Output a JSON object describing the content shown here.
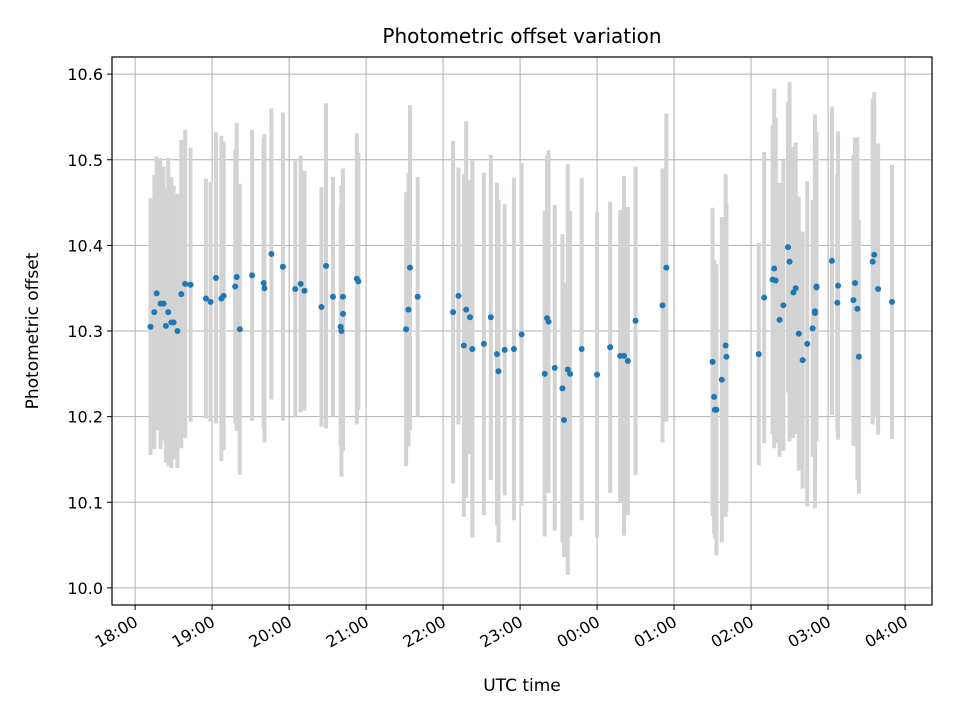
{
  "chart_data": {
    "type": "scatter",
    "title": "Photometric offset variation",
    "xlabel": "UTC time",
    "ylabel": "Photometric offset",
    "x_unit": "UTC hours (continuing past midnight)",
    "xlim": [
      17.7,
      28.35
    ],
    "ylim": [
      9.98,
      10.62
    ],
    "grid": true,
    "legend": "none",
    "x_ticks": [
      {
        "value": 18,
        "label": "18:00"
      },
      {
        "value": 19,
        "label": "19:00"
      },
      {
        "value": 20,
        "label": "20:00"
      },
      {
        "value": 21,
        "label": "21:00"
      },
      {
        "value": 22,
        "label": "22:00"
      },
      {
        "value": 23,
        "label": "23:00"
      },
      {
        "value": 24,
        "label": "00:00"
      },
      {
        "value": 25,
        "label": "01:00"
      },
      {
        "value": 26,
        "label": "02:00"
      },
      {
        "value": 27,
        "label": "03:00"
      },
      {
        "value": 28,
        "label": "04:00"
      }
    ],
    "y_ticks": [
      {
        "value": 10.0,
        "label": "10.0"
      },
      {
        "value": 10.1,
        "label": "10.1"
      },
      {
        "value": 10.2,
        "label": "10.2"
      },
      {
        "value": 10.3,
        "label": "10.3"
      },
      {
        "value": 10.4,
        "label": "10.4"
      },
      {
        "value": 10.5,
        "label": "10.5"
      },
      {
        "value": 10.6,
        "label": "10.6"
      }
    ],
    "colors": {
      "point": "#1f77b4",
      "errorbar": "#d3d3d3",
      "grid": "#b0b0b0",
      "axes": "#000000"
    },
    "series": [
      {
        "x": [
          18.2,
          18.25,
          18.28,
          18.33,
          18.37,
          18.4,
          18.43,
          18.47,
          18.5,
          18.55,
          18.6,
          18.65,
          18.72,
          18.92,
          18.98,
          19.05,
          19.12,
          19.15,
          19.3,
          19.32,
          19.36,
          19.52,
          19.67,
          19.68,
          19.77,
          19.92,
          20.08,
          20.15,
          20.2,
          20.42,
          20.48,
          20.57,
          20.67,
          20.68,
          20.7,
          20.7,
          20.88,
          20.9,
          21.52,
          21.55,
          21.57,
          21.67,
          22.13,
          22.2,
          22.27,
          22.3,
          22.35,
          22.38,
          22.53,
          22.62,
          22.7,
          22.72,
          22.8,
          22.92,
          23.02,
          23.32,
          23.35,
          23.37,
          23.45,
          23.55,
          23.57,
          23.62,
          23.65,
          23.8,
          24.0,
          24.17,
          24.3,
          24.35,
          24.4,
          24.5,
          24.85,
          24.9,
          25.5,
          25.52,
          25.53,
          25.55,
          25.62,
          25.67,
          25.68,
          26.1,
          26.17,
          26.28,
          26.3,
          26.32,
          26.37,
          26.42,
          26.48,
          26.5,
          26.55,
          26.58,
          26.62,
          26.67,
          26.73,
          26.8,
          26.83,
          26.83,
          26.85,
          26.85,
          27.05,
          27.12,
          27.13,
          27.33,
          27.35,
          27.38,
          27.4,
          27.58,
          27.6,
          27.65,
          27.83
        ],
        "y": [
          10.305,
          10.322,
          10.344,
          10.332,
          10.332,
          10.306,
          10.322,
          10.31,
          10.31,
          10.3,
          10.343,
          10.355,
          10.354,
          10.338,
          10.334,
          10.362,
          10.338,
          10.341,
          10.352,
          10.363,
          10.302,
          10.365,
          10.356,
          10.35,
          10.39,
          10.375,
          10.349,
          10.355,
          10.347,
          10.328,
          10.376,
          10.34,
          10.305,
          10.3,
          10.32,
          10.34,
          10.361,
          10.358,
          10.302,
          10.325,
          10.374,
          10.34,
          10.322,
          10.341,
          10.283,
          10.325,
          10.316,
          10.279,
          10.285,
          10.316,
          10.273,
          10.253,
          10.278,
          10.279,
          10.296,
          10.25,
          10.315,
          10.311,
          10.257,
          10.233,
          10.196,
          10.255,
          10.25,
          10.279,
          10.249,
          10.281,
          10.271,
          10.271,
          10.265,
          10.312,
          10.33,
          10.374,
          10.264,
          10.223,
          10.208,
          10.208,
          10.243,
          10.283,
          10.27,
          10.273,
          10.339,
          10.36,
          10.373,
          10.359,
          10.313,
          10.33,
          10.398,
          10.381,
          10.345,
          10.35,
          10.297,
          10.266,
          10.285,
          10.303,
          10.321,
          10.323,
          10.351,
          10.352,
          10.382,
          10.333,
          10.353,
          10.336,
          10.356,
          10.326,
          10.27,
          10.381,
          10.389,
          10.349,
          10.334
        ],
        "y_low": [
          10.155,
          10.162,
          10.184,
          10.162,
          10.172,
          10.146,
          10.142,
          10.14,
          10.15,
          10.14,
          10.163,
          10.175,
          10.194,
          10.198,
          10.194,
          10.192,
          10.148,
          10.161,
          10.192,
          10.183,
          10.132,
          10.195,
          10.186,
          10.17,
          10.22,
          10.195,
          10.199,
          10.205,
          10.207,
          10.188,
          10.186,
          10.2,
          10.165,
          10.13,
          10.16,
          10.19,
          10.191,
          10.208,
          10.142,
          10.165,
          10.184,
          10.2,
          10.122,
          10.191,
          10.083,
          10.105,
          10.156,
          10.059,
          10.085,
          10.126,
          10.073,
          10.053,
          10.108,
          10.079,
          10.096,
          10.06,
          10.125,
          10.111,
          10.067,
          10.053,
          10.036,
          10.015,
          10.06,
          10.079,
          10.059,
          10.111,
          10.101,
          10.061,
          10.085,
          10.132,
          10.17,
          10.194,
          10.084,
          10.063,
          10.058,
          10.038,
          10.053,
          10.083,
          10.09,
          10.143,
          10.169,
          10.18,
          10.163,
          10.169,
          10.153,
          10.16,
          10.228,
          10.171,
          10.175,
          10.18,
          10.137,
          10.116,
          10.095,
          10.153,
          10.131,
          10.093,
          10.171,
          10.172,
          10.202,
          10.183,
          10.173,
          10.166,
          10.186,
          10.126,
          10.11,
          10.191,
          10.199,
          10.179,
          10.174
        ],
        "y_high": [
          10.455,
          10.482,
          10.504,
          10.502,
          10.492,
          10.466,
          10.502,
          10.48,
          10.47,
          10.46,
          10.523,
          10.535,
          10.514,
          10.478,
          10.474,
          10.532,
          10.528,
          10.521,
          10.512,
          10.543,
          10.472,
          10.535,
          10.526,
          10.53,
          10.56,
          10.555,
          10.499,
          10.505,
          10.487,
          10.468,
          10.566,
          10.48,
          10.445,
          10.47,
          10.48,
          10.49,
          10.531,
          10.508,
          10.462,
          10.485,
          10.564,
          10.48,
          10.522,
          10.491,
          10.483,
          10.545,
          10.476,
          10.499,
          10.485,
          10.506,
          10.473,
          10.453,
          10.448,
          10.479,
          10.496,
          10.44,
          10.505,
          10.511,
          10.447,
          10.413,
          10.356,
          10.495,
          10.44,
          10.479,
          10.439,
          10.451,
          10.441,
          10.481,
          10.445,
          10.492,
          10.49,
          10.554,
          10.444,
          10.383,
          10.358,
          10.378,
          10.433,
          10.483,
          10.45,
          10.403,
          10.509,
          10.54,
          10.583,
          10.549,
          10.473,
          10.5,
          10.568,
          10.591,
          10.515,
          10.52,
          10.457,
          10.416,
          10.475,
          10.453,
          10.511,
          10.553,
          10.531,
          10.532,
          10.562,
          10.483,
          10.533,
          10.506,
          10.526,
          10.526,
          10.43,
          10.571,
          10.579,
          10.519,
          10.494
        ]
      }
    ]
  }
}
